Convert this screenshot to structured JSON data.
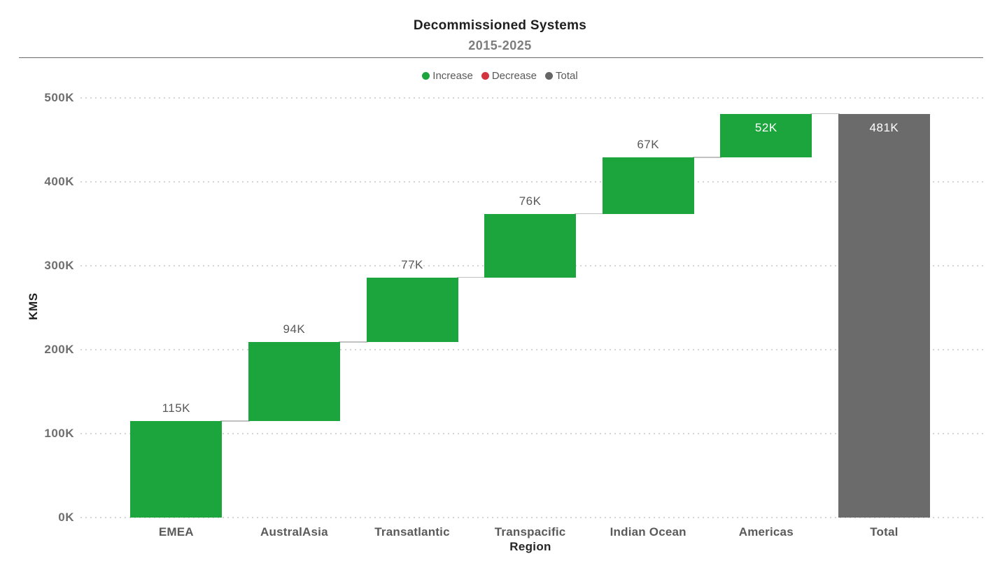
{
  "header": {
    "title": "Decommissioned Systems",
    "subtitle": "2015-2025"
  },
  "legend": {
    "position": "top-center",
    "items": [
      {
        "label": "Increase",
        "color": "#1CA53C"
      },
      {
        "label": "Decrease",
        "color": "#D23440"
      },
      {
        "label": "Total",
        "color": "#666666"
      }
    ]
  },
  "chart_data": {
    "type": "waterfall",
    "title": "Decommissioned Systems",
    "subtitle": "2015-2025",
    "xlabel": "Region",
    "ylabel": "KMS",
    "categories": [
      "EMEA",
      "AustralAsia",
      "Transatlantic",
      "Transpacific",
      "Indian Ocean",
      "Americas",
      "Total"
    ],
    "values": [
      115000,
      94000,
      77000,
      76000,
      67000,
      52000,
      481000
    ],
    "measures": [
      "relative",
      "relative",
      "relative",
      "relative",
      "relative",
      "relative",
      "total"
    ],
    "labels": [
      "115K",
      "94K",
      "77K",
      "76K",
      "67K",
      "52K",
      "481K"
    ],
    "label_positions": [
      "outside",
      "outside",
      "outside",
      "outside",
      "outside",
      "inside",
      "inside"
    ],
    "cumulative_start": [
      0,
      115000,
      209000,
      286000,
      362000,
      429000,
      0
    ],
    "cumulative_end": [
      115000,
      209000,
      286000,
      362000,
      429000,
      481000,
      481000
    ],
    "ylim": [
      0,
      500000
    ],
    "yticks": [
      {
        "value": 0,
        "label": "0K"
      },
      {
        "value": 100000,
        "label": "100K"
      },
      {
        "value": 200000,
        "label": "200K"
      },
      {
        "value": 300000,
        "label": "300K"
      },
      {
        "value": 400000,
        "label": "400K"
      },
      {
        "value": 500000,
        "label": "500K"
      }
    ],
    "grid": "horizontal-dotted",
    "legend_position": "top-center",
    "colors": {
      "increase": "#1CA53C",
      "decrease": "#D23440",
      "total": "#6B6B6B",
      "connector": "#C0C0C0"
    }
  }
}
